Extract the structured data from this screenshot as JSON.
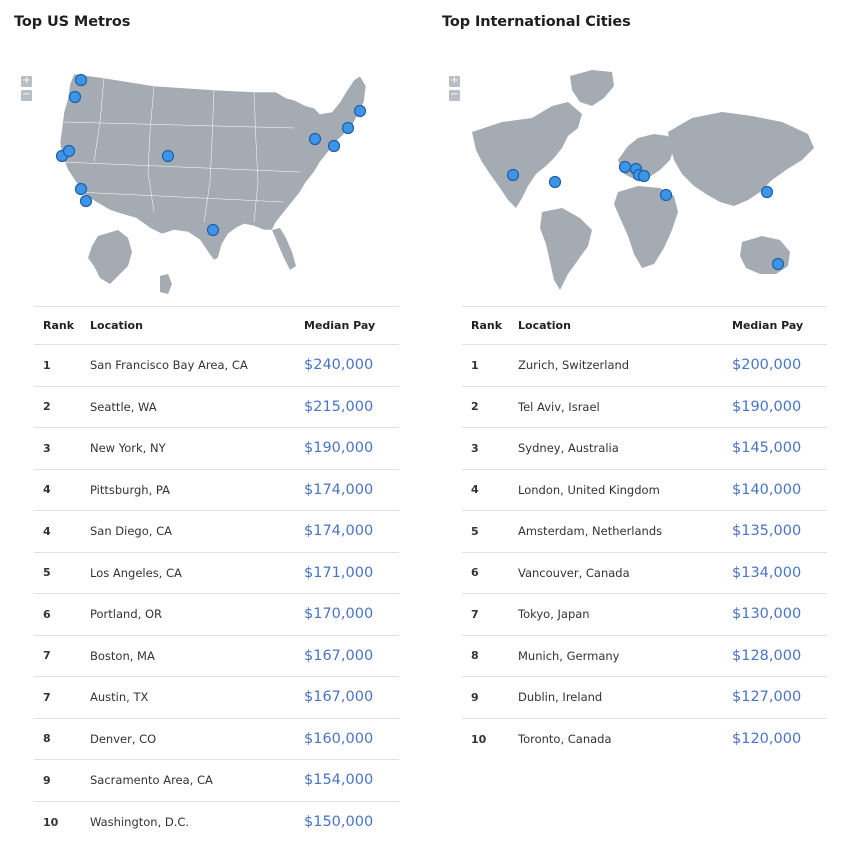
{
  "us": {
    "title": "Top US Metros",
    "zoom_in": "+",
    "zoom_out": "−",
    "headers": {
      "rank": "Rank",
      "location": "Location",
      "pay": "Median Pay"
    },
    "rows": [
      {
        "rank": "1",
        "location": "San Francisco Bay Area, CA",
        "pay": "$240,000"
      },
      {
        "rank": "2",
        "location": "Seattle, WA",
        "pay": "$215,000"
      },
      {
        "rank": "3",
        "location": "New York, NY",
        "pay": "$190,000"
      },
      {
        "rank": "4",
        "location": "Pittsburgh, PA",
        "pay": "$174,000"
      },
      {
        "rank": "4",
        "location": "San Diego, CA",
        "pay": "$174,000"
      },
      {
        "rank": "5",
        "location": "Los Angeles, CA",
        "pay": "$171,000"
      },
      {
        "rank": "6",
        "location": "Portland, OR",
        "pay": "$170,000"
      },
      {
        "rank": "7",
        "location": "Boston, MA",
        "pay": "$167,000"
      },
      {
        "rank": "7",
        "location": "Austin, TX",
        "pay": "$167,000"
      },
      {
        "rank": "8",
        "location": "Denver, CO",
        "pay": "$160,000"
      },
      {
        "rank": "9",
        "location": "Sacramento Area, CA",
        "pay": "$154,000"
      },
      {
        "rank": "10",
        "location": "Washington, D.C.",
        "pay": "$150,000"
      }
    ]
  },
  "intl": {
    "title": "Top International Cities",
    "zoom_in": "+",
    "zoom_out": "−",
    "headers": {
      "rank": "Rank",
      "location": "Location",
      "pay": "Median Pay"
    },
    "rows": [
      {
        "rank": "1",
        "location": "Zurich, Switzerland",
        "pay": "$200,000"
      },
      {
        "rank": "2",
        "location": "Tel Aviv, Israel",
        "pay": "$190,000"
      },
      {
        "rank": "3",
        "location": "Sydney, Australia",
        "pay": "$145,000"
      },
      {
        "rank": "4",
        "location": "London, United Kingdom",
        "pay": "$140,000"
      },
      {
        "rank": "5",
        "location": "Amsterdam, Netherlands",
        "pay": "$135,000"
      },
      {
        "rank": "6",
        "location": "Vancouver, Canada",
        "pay": "$134,000"
      },
      {
        "rank": "7",
        "location": "Tokyo, Japan",
        "pay": "$130,000"
      },
      {
        "rank": "8",
        "location": "Munich, Germany",
        "pay": "$128,000"
      },
      {
        "rank": "9",
        "location": "Dublin, Ireland",
        "pay": "$127,000"
      },
      {
        "rank": "10",
        "location": "Toronto, Canada",
        "pay": "$120,000"
      }
    ]
  },
  "colors": {
    "land": "#a4abb2",
    "marker_fill": "#3d95e8",
    "marker_stroke": "#1f5fa8",
    "pay_text": "#4a74c9"
  }
}
